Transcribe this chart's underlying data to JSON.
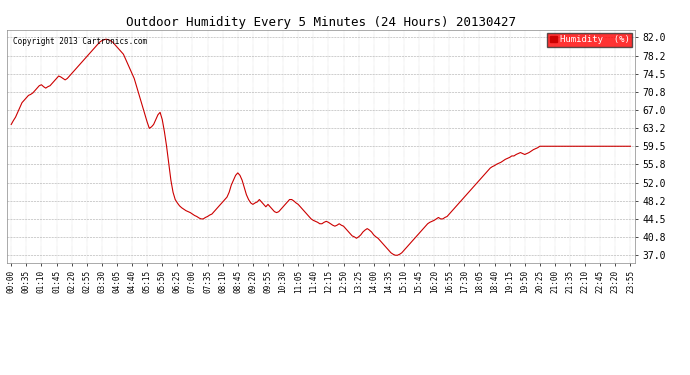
{
  "title": "Outdoor Humidity Every 5 Minutes (24 Hours) 20130427",
  "copyright": "Copyright 2013 Cartronics.com",
  "legend_label": "Humidity  (%)",
  "line_color": "#cc0000",
  "background_color": "#ffffff",
  "grid_color": "#aaaaaa",
  "yticks": [
    37.0,
    40.8,
    44.5,
    48.2,
    52.0,
    55.8,
    59.5,
    63.2,
    67.0,
    70.8,
    74.5,
    78.2,
    82.0
  ],
  "ylim": [
    35.5,
    83.5
  ],
  "num_points": 288,
  "xtick_step": 7,
  "humidity_data": [
    64.0,
    64.8,
    65.5,
    66.5,
    67.5,
    68.5,
    69.0,
    69.5,
    70.0,
    70.2,
    70.5,
    71.0,
    71.5,
    72.0,
    72.2,
    71.8,
    71.5,
    71.8,
    72.0,
    72.5,
    73.0,
    73.5,
    74.0,
    73.8,
    73.5,
    73.2,
    73.5,
    74.0,
    74.5,
    75.0,
    75.5,
    76.0,
    76.5,
    77.0,
    77.5,
    78.0,
    78.5,
    79.0,
    79.5,
    80.0,
    80.5,
    81.0,
    81.3,
    81.5,
    81.6,
    81.5,
    81.3,
    81.0,
    80.5,
    80.0,
    79.5,
    79.0,
    78.5,
    77.5,
    76.5,
    75.5,
    74.5,
    73.5,
    72.0,
    70.5,
    69.0,
    67.5,
    66.0,
    64.5,
    63.2,
    63.5,
    64.0,
    65.0,
    66.0,
    66.5,
    65.0,
    62.5,
    59.5,
    56.0,
    52.5,
    50.0,
    48.5,
    47.8,
    47.2,
    46.8,
    46.5,
    46.2,
    46.0,
    45.8,
    45.5,
    45.2,
    45.0,
    44.7,
    44.5,
    44.5,
    44.8,
    45.0,
    45.3,
    45.5,
    46.0,
    46.5,
    47.0,
    47.5,
    48.0,
    48.5,
    49.0,
    50.0,
    51.5,
    52.5,
    53.5,
    54.0,
    53.5,
    52.5,
    51.0,
    49.5,
    48.5,
    47.8,
    47.5,
    47.8,
    48.0,
    48.5,
    48.0,
    47.5,
    47.0,
    47.5,
    47.0,
    46.5,
    46.0,
    45.8,
    46.0,
    46.5,
    47.0,
    47.5,
    48.0,
    48.5,
    48.5,
    48.2,
    47.8,
    47.5,
    47.0,
    46.5,
    46.0,
    45.5,
    45.0,
    44.5,
    44.2,
    44.0,
    43.8,
    43.5,
    43.5,
    43.8,
    44.0,
    43.8,
    43.5,
    43.2,
    43.0,
    43.2,
    43.5,
    43.2,
    43.0,
    42.5,
    42.0,
    41.5,
    41.0,
    40.8,
    40.5,
    40.8,
    41.2,
    41.8,
    42.2,
    42.5,
    42.2,
    41.8,
    41.2,
    40.8,
    40.5,
    40.0,
    39.5,
    39.0,
    38.5,
    38.0,
    37.5,
    37.2,
    37.0,
    37.0,
    37.2,
    37.5,
    38.0,
    38.5,
    39.0,
    39.5,
    40.0,
    40.5,
    41.0,
    41.5,
    42.0,
    42.5,
    43.0,
    43.5,
    43.8,
    44.0,
    44.2,
    44.5,
    44.8,
    44.5,
    44.5,
    44.8,
    45.0,
    45.5,
    46.0,
    46.5,
    47.0,
    47.5,
    48.0,
    48.5,
    49.0,
    49.5,
    50.0,
    50.5,
    51.0,
    51.5,
    52.0,
    52.5,
    53.0,
    53.5,
    54.0,
    54.5,
    55.0,
    55.3,
    55.5,
    55.8,
    56.0,
    56.2,
    56.5,
    56.8,
    57.0,
    57.2,
    57.5,
    57.5,
    57.8,
    58.0,
    58.2,
    58.0,
    57.8,
    58.0,
    58.2,
    58.5,
    58.8,
    59.0,
    59.2,
    59.5,
    59.5,
    59.5,
    59.5,
    59.5,
    59.5,
    59.5,
    59.5,
    59.5,
    59.5,
    59.5,
    59.5,
    59.5,
    59.5,
    59.5,
    59.5,
    59.5,
    59.5,
    59.5,
    59.5,
    59.5,
    59.5,
    59.5,
    59.5,
    59.5,
    59.5,
    59.5,
    59.5,
    59.5,
    59.5,
    59.5,
    59.5,
    59.5,
    59.5,
    59.5,
    59.5,
    59.5,
    59.5,
    59.5,
    59.5,
    59.5,
    59.5,
    59.5
  ]
}
